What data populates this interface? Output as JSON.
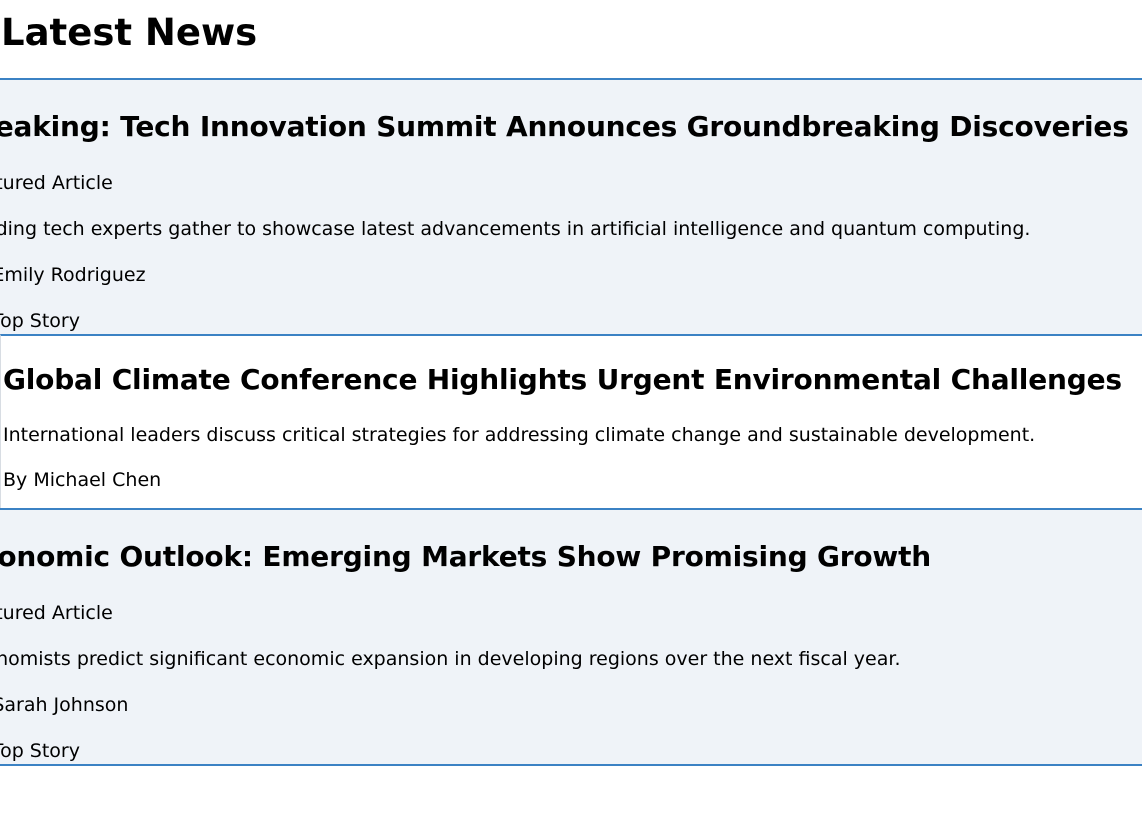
{
  "page": {
    "title": "Latest News"
  },
  "articles": [
    {
      "headline": "Breaking: Tech Innovation Summit Announces Groundbreaking Discoveries",
      "tag": "Featured Article",
      "summary": "Leading tech experts gather to showcase latest advancements in artificial intelligence and quantum computing.",
      "byline": "By Emily Rodriguez",
      "badge": "🔥 Top Story"
    },
    {
      "headline": "Global Climate Conference Highlights Urgent Environmental Challenges",
      "summary": "International leaders discuss critical strategies for addressing climate change and sustainable development.",
      "byline": "By Michael Chen"
    },
    {
      "headline": "Economic Outlook: Emerging Markets Show Promising Growth",
      "tag": "Featured Article",
      "summary": "Economists predict significant economic expansion in developing regions over the next fiscal year.",
      "byline": "By Sarah Johnson",
      "badge": "🔥 Top Story"
    }
  ],
  "colors": {
    "accent_border": "#3b82c4",
    "featured_background": "#eff3f8",
    "plain_background": "#ffffff"
  }
}
